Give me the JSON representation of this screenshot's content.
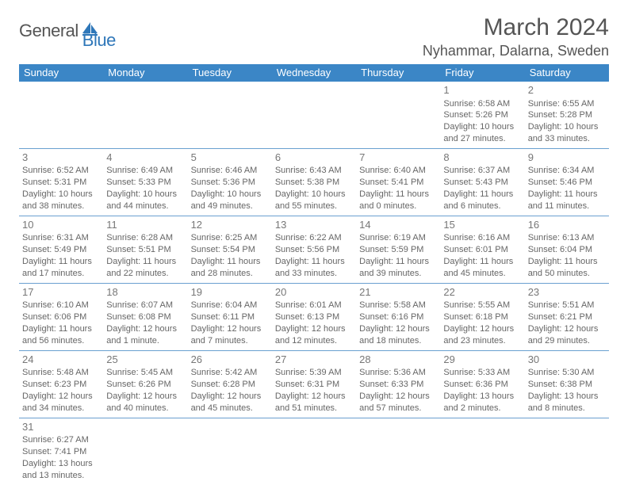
{
  "logo": {
    "word1": "General",
    "word2": "Blue",
    "accent_color": "#2f77b9"
  },
  "title": "March 2024",
  "location": "Nyhammar, Dalarna, Sweden",
  "calendar": {
    "type": "table",
    "header_bg": "#3b86c6",
    "header_fg": "#ffffff",
    "grid_line_color": "#6aa0d0",
    "text_color": "#666666",
    "day_num_color": "#777777",
    "cell_fontsize": 11,
    "daynum_fontsize": 13,
    "columns": [
      "Sunday",
      "Monday",
      "Tuesday",
      "Wednesday",
      "Thursday",
      "Friday",
      "Saturday"
    ],
    "weeks": [
      [
        {
          "num": "",
          "sunrise": "",
          "sunset": "",
          "daylight": ""
        },
        {
          "num": "",
          "sunrise": "",
          "sunset": "",
          "daylight": ""
        },
        {
          "num": "",
          "sunrise": "",
          "sunset": "",
          "daylight": ""
        },
        {
          "num": "",
          "sunrise": "",
          "sunset": "",
          "daylight": ""
        },
        {
          "num": "",
          "sunrise": "",
          "sunset": "",
          "daylight": ""
        },
        {
          "num": "1",
          "sunrise": "Sunrise: 6:58 AM",
          "sunset": "Sunset: 5:26 PM",
          "daylight": "Daylight: 10 hours and 27 minutes."
        },
        {
          "num": "2",
          "sunrise": "Sunrise: 6:55 AM",
          "sunset": "Sunset: 5:28 PM",
          "daylight": "Daylight: 10 hours and 33 minutes."
        }
      ],
      [
        {
          "num": "3",
          "sunrise": "Sunrise: 6:52 AM",
          "sunset": "Sunset: 5:31 PM",
          "daylight": "Daylight: 10 hours and 38 minutes."
        },
        {
          "num": "4",
          "sunrise": "Sunrise: 6:49 AM",
          "sunset": "Sunset: 5:33 PM",
          "daylight": "Daylight: 10 hours and 44 minutes."
        },
        {
          "num": "5",
          "sunrise": "Sunrise: 6:46 AM",
          "sunset": "Sunset: 5:36 PM",
          "daylight": "Daylight: 10 hours and 49 minutes."
        },
        {
          "num": "6",
          "sunrise": "Sunrise: 6:43 AM",
          "sunset": "Sunset: 5:38 PM",
          "daylight": "Daylight: 10 hours and 55 minutes."
        },
        {
          "num": "7",
          "sunrise": "Sunrise: 6:40 AM",
          "sunset": "Sunset: 5:41 PM",
          "daylight": "Daylight: 11 hours and 0 minutes."
        },
        {
          "num": "8",
          "sunrise": "Sunrise: 6:37 AM",
          "sunset": "Sunset: 5:43 PM",
          "daylight": "Daylight: 11 hours and 6 minutes."
        },
        {
          "num": "9",
          "sunrise": "Sunrise: 6:34 AM",
          "sunset": "Sunset: 5:46 PM",
          "daylight": "Daylight: 11 hours and 11 minutes."
        }
      ],
      [
        {
          "num": "10",
          "sunrise": "Sunrise: 6:31 AM",
          "sunset": "Sunset: 5:49 PM",
          "daylight": "Daylight: 11 hours and 17 minutes."
        },
        {
          "num": "11",
          "sunrise": "Sunrise: 6:28 AM",
          "sunset": "Sunset: 5:51 PM",
          "daylight": "Daylight: 11 hours and 22 minutes."
        },
        {
          "num": "12",
          "sunrise": "Sunrise: 6:25 AM",
          "sunset": "Sunset: 5:54 PM",
          "daylight": "Daylight: 11 hours and 28 minutes."
        },
        {
          "num": "13",
          "sunrise": "Sunrise: 6:22 AM",
          "sunset": "Sunset: 5:56 PM",
          "daylight": "Daylight: 11 hours and 33 minutes."
        },
        {
          "num": "14",
          "sunrise": "Sunrise: 6:19 AM",
          "sunset": "Sunset: 5:59 PM",
          "daylight": "Daylight: 11 hours and 39 minutes."
        },
        {
          "num": "15",
          "sunrise": "Sunrise: 6:16 AM",
          "sunset": "Sunset: 6:01 PM",
          "daylight": "Daylight: 11 hours and 45 minutes."
        },
        {
          "num": "16",
          "sunrise": "Sunrise: 6:13 AM",
          "sunset": "Sunset: 6:04 PM",
          "daylight": "Daylight: 11 hours and 50 minutes."
        }
      ],
      [
        {
          "num": "17",
          "sunrise": "Sunrise: 6:10 AM",
          "sunset": "Sunset: 6:06 PM",
          "daylight": "Daylight: 11 hours and 56 minutes."
        },
        {
          "num": "18",
          "sunrise": "Sunrise: 6:07 AM",
          "sunset": "Sunset: 6:08 PM",
          "daylight": "Daylight: 12 hours and 1 minute."
        },
        {
          "num": "19",
          "sunrise": "Sunrise: 6:04 AM",
          "sunset": "Sunset: 6:11 PM",
          "daylight": "Daylight: 12 hours and 7 minutes."
        },
        {
          "num": "20",
          "sunrise": "Sunrise: 6:01 AM",
          "sunset": "Sunset: 6:13 PM",
          "daylight": "Daylight: 12 hours and 12 minutes."
        },
        {
          "num": "21",
          "sunrise": "Sunrise: 5:58 AM",
          "sunset": "Sunset: 6:16 PM",
          "daylight": "Daylight: 12 hours and 18 minutes."
        },
        {
          "num": "22",
          "sunrise": "Sunrise: 5:55 AM",
          "sunset": "Sunset: 6:18 PM",
          "daylight": "Daylight: 12 hours and 23 minutes."
        },
        {
          "num": "23",
          "sunrise": "Sunrise: 5:51 AM",
          "sunset": "Sunset: 6:21 PM",
          "daylight": "Daylight: 12 hours and 29 minutes."
        }
      ],
      [
        {
          "num": "24",
          "sunrise": "Sunrise: 5:48 AM",
          "sunset": "Sunset: 6:23 PM",
          "daylight": "Daylight: 12 hours and 34 minutes."
        },
        {
          "num": "25",
          "sunrise": "Sunrise: 5:45 AM",
          "sunset": "Sunset: 6:26 PM",
          "daylight": "Daylight: 12 hours and 40 minutes."
        },
        {
          "num": "26",
          "sunrise": "Sunrise: 5:42 AM",
          "sunset": "Sunset: 6:28 PM",
          "daylight": "Daylight: 12 hours and 45 minutes."
        },
        {
          "num": "27",
          "sunrise": "Sunrise: 5:39 AM",
          "sunset": "Sunset: 6:31 PM",
          "daylight": "Daylight: 12 hours and 51 minutes."
        },
        {
          "num": "28",
          "sunrise": "Sunrise: 5:36 AM",
          "sunset": "Sunset: 6:33 PM",
          "daylight": "Daylight: 12 hours and 57 minutes."
        },
        {
          "num": "29",
          "sunrise": "Sunrise: 5:33 AM",
          "sunset": "Sunset: 6:36 PM",
          "daylight": "Daylight: 13 hours and 2 minutes."
        },
        {
          "num": "30",
          "sunrise": "Sunrise: 5:30 AM",
          "sunset": "Sunset: 6:38 PM",
          "daylight": "Daylight: 13 hours and 8 minutes."
        }
      ],
      [
        {
          "num": "31",
          "sunrise": "Sunrise: 6:27 AM",
          "sunset": "Sunset: 7:41 PM",
          "daylight": "Daylight: 13 hours and 13 minutes."
        },
        {
          "num": "",
          "sunrise": "",
          "sunset": "",
          "daylight": ""
        },
        {
          "num": "",
          "sunrise": "",
          "sunset": "",
          "daylight": ""
        },
        {
          "num": "",
          "sunrise": "",
          "sunset": "",
          "daylight": ""
        },
        {
          "num": "",
          "sunrise": "",
          "sunset": "",
          "daylight": ""
        },
        {
          "num": "",
          "sunrise": "",
          "sunset": "",
          "daylight": ""
        },
        {
          "num": "",
          "sunrise": "",
          "sunset": "",
          "daylight": ""
        }
      ]
    ]
  }
}
